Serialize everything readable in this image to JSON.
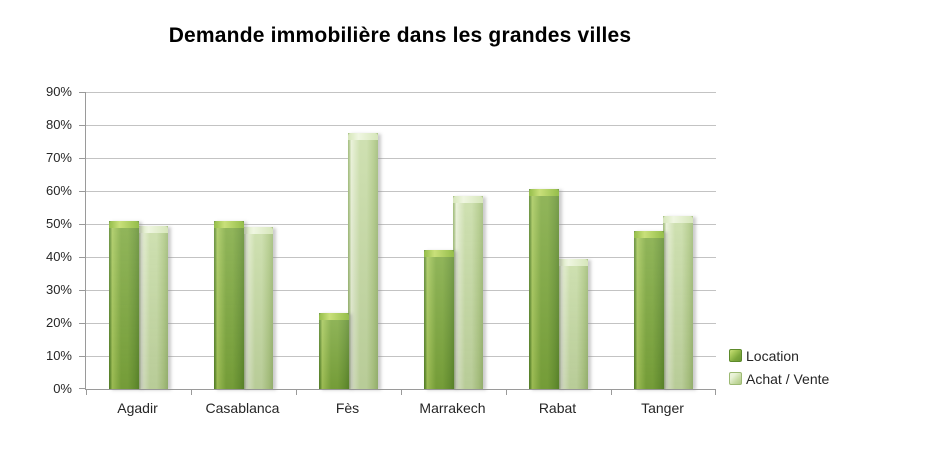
{
  "chart_data": {
    "type": "bar",
    "title": "Demande immobilière dans les grandes villes",
    "categories": [
      "Agadir",
      "Casablanca",
      "Fès",
      "Marrakech",
      "Rabat",
      "Tanger"
    ],
    "series": [
      {
        "name": "Location",
        "values": [
          51,
          51,
          23,
          42,
          60.5,
          48
        ],
        "color": "#7da83c",
        "colors": {
          "edge": "#5d8a2b",
          "highlight": "#a6c858",
          "body": "#7da83c",
          "shade": "#6b9733",
          "cap_highlight": "#c9e07a",
          "cap": "#94bd4a"
        }
      },
      {
        "name": "Achat / Vente",
        "values": [
          49.5,
          49,
          77.5,
          58.5,
          39.5,
          52.5
        ],
        "color": "#c6dba3",
        "colors": {
          "edge": "#9cb973",
          "highlight": "#e7f0d4",
          "body": "#c6dba3",
          "shade": "#afc984",
          "cap_highlight": "#eff6e1",
          "cap": "#d6e6ba"
        }
      }
    ],
    "ylim": [
      0,
      90
    ],
    "ytick_step": 10,
    "ytick_labels": [
      "0%",
      "10%",
      "20%",
      "30%",
      "40%",
      "50%",
      "60%",
      "70%",
      "80%",
      "90%"
    ],
    "grid": true,
    "legend_position": "right",
    "colors": {
      "grid": "#c3c3c3",
      "axis": "#9a9a9a",
      "text": "#262626",
      "title": "#000000",
      "background": "#ffffff"
    }
  }
}
